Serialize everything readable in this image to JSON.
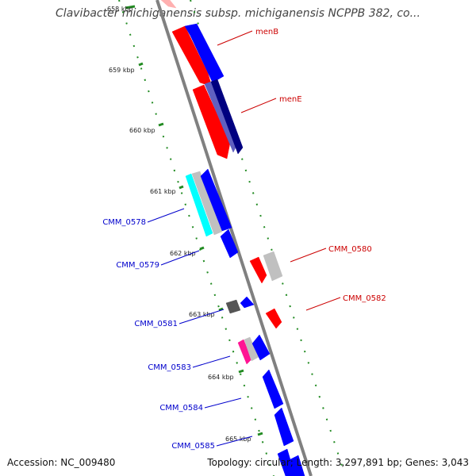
{
  "title": "Clavibacter michiganensis subsp. michiganensis NCPPB 382, co...",
  "accession": "Accession: NC_009480",
  "topology": "Topology: circular; Length: 3,297,891 bp; Genes: 3,043",
  "colors": {
    "backbone": "#808080",
    "dotted_track": "#228b22",
    "forward_gene": "#0000ff",
    "reverse_gene": "#ff0000",
    "reverse_label": "#cc0000",
    "forward_label": "#0000cc"
  },
  "ruler": [
    {
      "label": "658 kbp"
    },
    {
      "label": "659 kbp"
    },
    {
      "label": "660 kbp"
    },
    {
      "label": "661 kbp"
    },
    {
      "label": "662 kbp"
    },
    {
      "label": "663 kbp"
    },
    {
      "label": "664 kbp"
    },
    {
      "label": "665 kbp"
    }
  ],
  "gene_labels": [
    {
      "name": "menB",
      "side": "right"
    },
    {
      "name": "menE",
      "side": "right"
    },
    {
      "name": "CMM_0578",
      "side": "left"
    },
    {
      "name": "CMM_0579",
      "side": "left"
    },
    {
      "name": "CMM_0580",
      "side": "right"
    },
    {
      "name": "CMM_0581",
      "side": "left"
    },
    {
      "name": "CMM_0582",
      "side": "right"
    },
    {
      "name": "CMM_0583",
      "side": "left"
    },
    {
      "name": "CMM_0584",
      "side": "left"
    },
    {
      "name": "CMM_0585",
      "side": "left"
    }
  ]
}
